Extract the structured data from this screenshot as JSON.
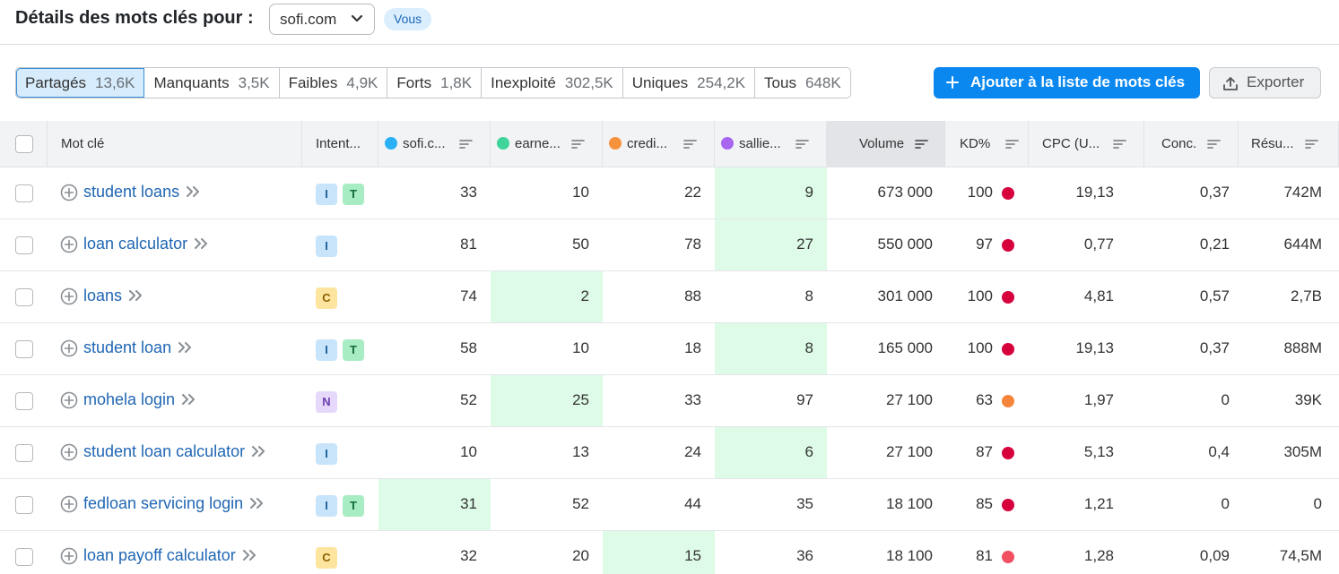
{
  "header": {
    "title": "Détails des mots clés pour :",
    "domain": "sofi.com",
    "badge": "Vous"
  },
  "tabs": [
    {
      "label": "Partagés",
      "count": "13,6K",
      "active": true
    },
    {
      "label": "Manquants",
      "count": "3,5K"
    },
    {
      "label": "Faibles",
      "count": "4,9K"
    },
    {
      "label": "Forts",
      "count": "1,8K"
    },
    {
      "label": "Inexploité",
      "count": "302,5K"
    },
    {
      "label": "Uniques",
      "count": "254,2K"
    },
    {
      "label": "Tous",
      "count": "648K"
    }
  ],
  "actions": {
    "add_label": "Ajouter à la liste de mots clés",
    "export_label": "Exporter"
  },
  "columns": {
    "keyword": "Mot clé",
    "intent": "Intent...",
    "d1": "sofi.c...",
    "d2": "earne...",
    "d3": "credi...",
    "d4": "sallie...",
    "volume": "Volume",
    "kd": "KD%",
    "cpc": "CPC (U...",
    "conc": "Conc.",
    "results": "Résu..."
  },
  "domain_colors": {
    "d1": "#2ab1f5",
    "d2": "#3fd49a",
    "d3": "#f6923c",
    "d4": "#a866f0"
  },
  "rows": [
    {
      "keyword": "student loans",
      "intents": [
        "I",
        "T"
      ],
      "d1": "33",
      "d2": "10",
      "d3": "22",
      "d4": "9",
      "best": "d4",
      "volume": "673 000",
      "kd": "100",
      "kd_color": "#d6003d",
      "cpc": "19,13",
      "conc": "0,37",
      "results": "742M"
    },
    {
      "keyword": "loan calculator",
      "intents": [
        "I"
      ],
      "d1": "81",
      "d2": "50",
      "d3": "78",
      "d4": "27",
      "best": "d4",
      "volume": "550 000",
      "kd": "97",
      "kd_color": "#d6003d",
      "cpc": "0,77",
      "conc": "0,21",
      "results": "644M"
    },
    {
      "keyword": "loans",
      "intents": [
        "C"
      ],
      "d1": "74",
      "d2": "2",
      "d3": "88",
      "d4": "8",
      "best": "d2",
      "volume": "301 000",
      "kd": "100",
      "kd_color": "#d6003d",
      "cpc": "4,81",
      "conc": "0,57",
      "results": "2,7B"
    },
    {
      "keyword": "student loan",
      "intents": [
        "I",
        "T"
      ],
      "d1": "58",
      "d2": "10",
      "d3": "18",
      "d4": "8",
      "best": "d4",
      "volume": "165 000",
      "kd": "100",
      "kd_color": "#d6003d",
      "cpc": "19,13",
      "conc": "0,37",
      "results": "888M"
    },
    {
      "keyword": "mohela login",
      "intents": [
        "N"
      ],
      "d1": "52",
      "d2": "25",
      "d3": "33",
      "d4": "97",
      "best": "d2",
      "volume": "27 100",
      "kd": "63",
      "kd_color": "#f4853a",
      "cpc": "1,97",
      "conc": "0",
      "results": "39K"
    },
    {
      "keyword": "student loan calculator",
      "intents": [
        "I"
      ],
      "d1": "10",
      "d2": "13",
      "d3": "24",
      "d4": "6",
      "best": "d4",
      "volume": "27 100",
      "kd": "87",
      "kd_color": "#d6003d",
      "cpc": "5,13",
      "conc": "0,4",
      "results": "305M"
    },
    {
      "keyword": "fedloan servicing login",
      "intents": [
        "I",
        "T"
      ],
      "d1": "31",
      "d2": "52",
      "d3": "44",
      "d4": "35",
      "best": "d1",
      "volume": "18 100",
      "kd": "85",
      "kd_color": "#d6003d",
      "cpc": "1,21",
      "conc": "0",
      "results": "0"
    },
    {
      "keyword": "loan payoff calculator",
      "intents": [
        "C"
      ],
      "d1": "32",
      "d2": "20",
      "d3": "15",
      "d4": "36",
      "best": "d3",
      "volume": "18 100",
      "kd": "81",
      "kd_color": "#f05060",
      "cpc": "1,28",
      "conc": "0,09",
      "results": "74,5M"
    }
  ]
}
